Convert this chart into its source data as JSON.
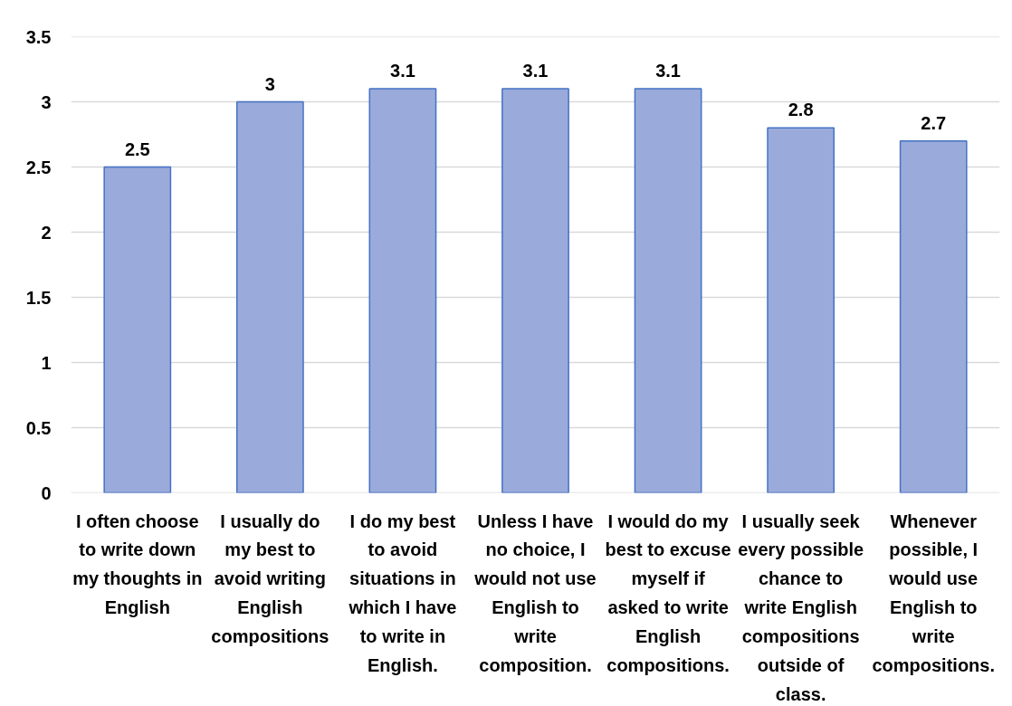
{
  "chart_data": {
    "type": "bar",
    "categories": [
      "I often choose to write down my thoughts in English",
      "I usually do my best to avoid writing English compositions",
      "I do my best to avoid situations in which I have to write in English.",
      "Unless I have no choice, I would not use English to write composition.",
      "I would do my best to excuse myself if asked to write English compositions.",
      "I usually seek every possible chance to write English compositions outside of class.",
      "Whenever possible, I would use English to write compositions."
    ],
    "values": [
      2.5,
      3,
      3.1,
      3.1,
      3.1,
      2.8,
      2.7
    ],
    "color": "#9aabdb",
    "ylim": [
      0,
      3.5
    ],
    "yticks": [
      0,
      0.5,
      1,
      1.5,
      2,
      2.5,
      3,
      3.5
    ],
    "grid": "y",
    "data_labels": true
  }
}
